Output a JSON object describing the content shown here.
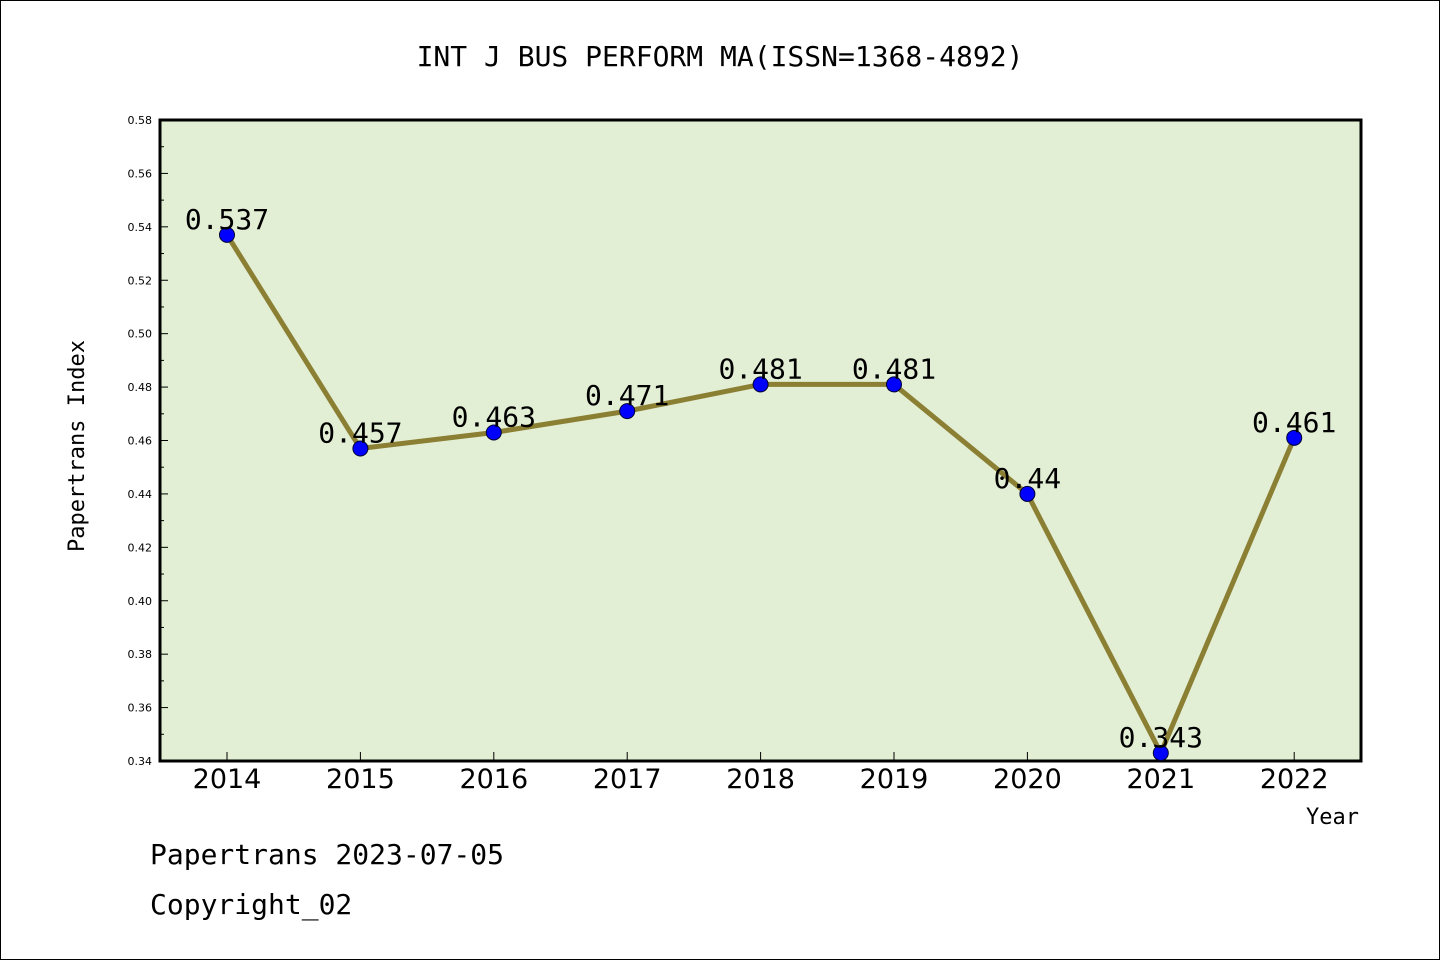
{
  "chart_data": {
    "type": "line",
    "title": "INT J BUS PERFORM MA(ISSN=1368-4892)",
    "xlabel": "Year",
    "ylabel": "Papertrans Index",
    "categories": [
      "2014",
      "2015",
      "2016",
      "2017",
      "2018",
      "2019",
      "2020",
      "2021",
      "2022"
    ],
    "values": [
      0.537,
      0.457,
      0.463,
      0.471,
      0.481,
      0.481,
      0.44,
      0.343,
      0.461
    ],
    "data_labels": [
      "0.537",
      "0.457",
      "0.463",
      "0.471",
      "0.481",
      "0.481",
      "0.44",
      "0.343",
      "0.461"
    ],
    "ylim": [
      0.34,
      0.58
    ],
    "yticks": [
      "0.34",
      "0.36",
      "0.38",
      "0.40",
      "0.42",
      "0.44",
      "0.46",
      "0.48",
      "0.50",
      "0.52",
      "0.54",
      "0.56",
      "0.58"
    ],
    "grid": false,
    "line_color": "#8B7F33",
    "marker_color": "#0000FF",
    "plot_background": "#E2EFD4"
  },
  "footer": {
    "line1": "Papertrans 2023-07-05",
    "line2": "Copyright_02"
  }
}
